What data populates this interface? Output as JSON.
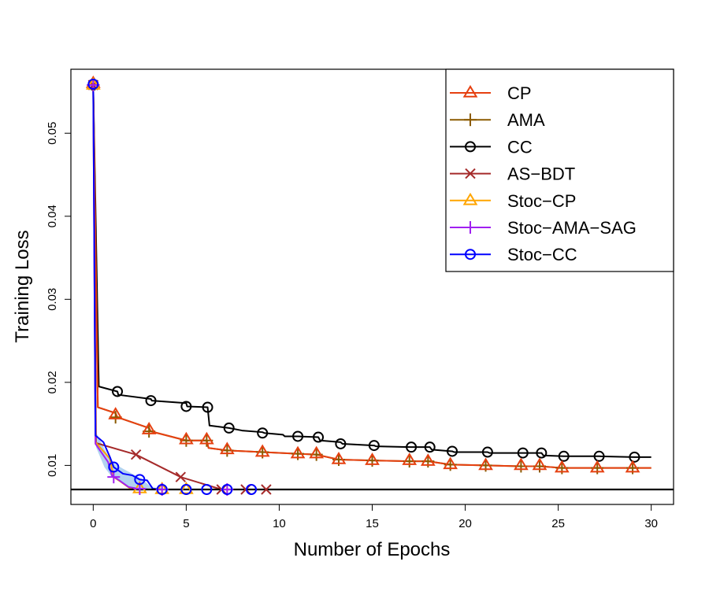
{
  "chart_data": {
    "type": "line",
    "title": "",
    "xlabel": "Number of Epochs",
    "ylabel": "Training Loss",
    "xlim": [
      -1.2,
      31.2
    ],
    "ylim": [
      0.0053,
      0.0577
    ],
    "xticks": [
      0,
      5,
      10,
      15,
      20,
      25,
      30
    ],
    "yticks": [
      0.01,
      0.02,
      0.03,
      0.04,
      0.05
    ],
    "xtick_labels": [
      "0",
      "5",
      "10",
      "15",
      "20",
      "25",
      "30"
    ],
    "ytick_labels": [
      "0.01",
      "0.02",
      "0.03",
      "0.04",
      "0.05"
    ],
    "reference_line_y": 0.0071,
    "legend_position": "top-right",
    "grid": false,
    "series": [
      {
        "name": "CC",
        "color": "#000000",
        "marker": "circle",
        "x": [
          0,
          0.3,
          1.3,
          1.35,
          3.1,
          3.15,
          5.0,
          5.05,
          6.15,
          6.25,
          7.3,
          8.0,
          9.1,
          9.2,
          10.2,
          10.3,
          11.0,
          12.1,
          12.2,
          13.3,
          13.4,
          15.1,
          15.2,
          17.1,
          18.1,
          18.2,
          19.3,
          19.4,
          21.2,
          21.3,
          23.1,
          24.1,
          24.2,
          25.3,
          27.2,
          29.1,
          30.0
        ],
        "y": [
          0.0558,
          0.0195,
          0.0189,
          0.0185,
          0.018,
          0.0178,
          0.0175,
          0.0171,
          0.017,
          0.0148,
          0.0145,
          0.0142,
          0.014,
          0.0139,
          0.0137,
          0.0135,
          0.0135,
          0.0134,
          0.013,
          0.0128,
          0.0126,
          0.0124,
          0.0123,
          0.0122,
          0.0122,
          0.0119,
          0.0117,
          0.0116,
          0.0116,
          0.0115,
          0.0115,
          0.0115,
          0.0112,
          0.0111,
          0.0111,
          0.011,
          0.011
        ],
        "marker_x": [
          0,
          1.3,
          3.1,
          5.0,
          6.15,
          7.3,
          9.1,
          11.0,
          12.1,
          13.3,
          15.1,
          17.1,
          18.1,
          19.3,
          21.2,
          23.1,
          24.1,
          25.3,
          27.2,
          29.1
        ],
        "marker_y": [
          0.0558,
          0.0189,
          0.0178,
          0.0171,
          0.017,
          0.0145,
          0.0139,
          0.0135,
          0.0134,
          0.0126,
          0.0124,
          0.0122,
          0.0122,
          0.0117,
          0.0116,
          0.0115,
          0.0115,
          0.0111,
          0.0111,
          0.011
        ]
      },
      {
        "name": "AMA",
        "color": "#8b5a00",
        "marker": "plus",
        "x": [
          0,
          0.25,
          1.2,
          1.3,
          3.0,
          3.1,
          5.0,
          6.1,
          6.2,
          7.2,
          9.1,
          11.0,
          12.0,
          13.2,
          15.0,
          17.0,
          18.0,
          19.2,
          21.1,
          23.0,
          24.0,
          25.2,
          27.1,
          29.0,
          30.0
        ],
        "y": [
          0.0558,
          0.017,
          0.0163,
          0.0158,
          0.0145,
          0.0141,
          0.013,
          0.013,
          0.0121,
          0.0118,
          0.0116,
          0.0114,
          0.0113,
          0.0107,
          0.0106,
          0.0105,
          0.0105,
          0.0101,
          0.01,
          0.0099,
          0.0099,
          0.0097,
          0.0097,
          0.0097,
          0.0097
        ],
        "marker_x": [
          0,
          1.2,
          3.0,
          5.0,
          6.1,
          7.2,
          9.1,
          11.0,
          12.0,
          13.2,
          15.0,
          17.0,
          18.0,
          19.2,
          21.1,
          23.0,
          24.0,
          25.2,
          27.1,
          29.0
        ],
        "marker_y": [
          0.0558,
          0.0158,
          0.0141,
          0.013,
          0.013,
          0.0118,
          0.0116,
          0.0114,
          0.0113,
          0.0107,
          0.0106,
          0.0105,
          0.0105,
          0.0101,
          0.01,
          0.0099,
          0.0099,
          0.0097,
          0.0097,
          0.0097
        ]
      },
      {
        "name": "CP",
        "color": "#e64010",
        "marker": "triangle",
        "x": [
          0,
          0.25,
          1.2,
          1.3,
          3.0,
          3.1,
          5.0,
          6.1,
          6.2,
          7.2,
          9.1,
          11.0,
          12.0,
          13.2,
          15.0,
          17.0,
          18.0,
          19.2,
          21.1,
          23.0,
          24.0,
          25.2,
          27.1,
          29.0,
          30.0
        ],
        "y": [
          0.0558,
          0.017,
          0.0163,
          0.0158,
          0.0145,
          0.0141,
          0.013,
          0.013,
          0.0121,
          0.0118,
          0.0116,
          0.0114,
          0.0113,
          0.0107,
          0.0106,
          0.0105,
          0.0105,
          0.0101,
          0.01,
          0.0099,
          0.0099,
          0.0097,
          0.0097,
          0.0097,
          0.0097
        ],
        "marker_x": [
          0,
          1.2,
          3.0,
          5.0,
          6.1,
          7.2,
          9.1,
          11.0,
          12.0,
          13.2,
          15.0,
          17.0,
          18.0,
          19.2,
          21.1,
          23.0,
          24.0,
          25.2,
          27.1,
          29.0
        ],
        "marker_y": [
          0.056,
          0.0161,
          0.0143,
          0.0131,
          0.0131,
          0.0119,
          0.0116,
          0.0114,
          0.0114,
          0.0107,
          0.0106,
          0.0106,
          0.0105,
          0.0101,
          0.01,
          0.01,
          0.01,
          0.0097,
          0.0097,
          0.0097
        ]
      },
      {
        "name": "AS−BDT",
        "color": "#a52a2a",
        "marker": "cross",
        "x": [
          0,
          0.15,
          2.3,
          4.7,
          6.9,
          7.3,
          8.2,
          9.3
        ],
        "y": [
          0.0558,
          0.0127,
          0.0113,
          0.0086,
          0.0071,
          0.0071,
          0.0071,
          0.0071
        ],
        "marker_x": [
          0,
          2.3,
          4.7,
          6.9,
          8.2,
          9.3
        ],
        "marker_y": [
          0.0558,
          0.0113,
          0.0086,
          0.0071,
          0.0071,
          0.0071
        ]
      },
      {
        "name": "Stoc−CP",
        "color": "#ffa500",
        "marker": "triangle",
        "x": [
          0,
          0.12,
          0.9,
          1.1,
          1.5,
          2.0,
          2.5,
          3.0,
          4.0,
          5.0,
          7.0
        ],
        "y": [
          0.0558,
          0.0128,
          0.0108,
          0.0086,
          0.008,
          0.0072,
          0.0071,
          0.0071,
          0.0071,
          0.0071,
          0.0071
        ],
        "marker_x": [
          0,
          2.5,
          3.7,
          5.0
        ],
        "marker_y": [
          0.0558,
          0.0072,
          0.0071,
          0.0071
        ]
      },
      {
        "name": "Stoc−AMA−SAG",
        "color": "#a020f0",
        "marker": "plus",
        "x": [
          0,
          0.12,
          0.8,
          1.0,
          1.4,
          1.9,
          2.4,
          3.0,
          3.7,
          5.0,
          7.0
        ],
        "y": [
          0.0558,
          0.0126,
          0.0104,
          0.0088,
          0.0082,
          0.0074,
          0.0072,
          0.0071,
          0.0071,
          0.0071,
          0.0071
        ],
        "marker_x": [
          0,
          1.1,
          2.5,
          3.7,
          7.2
        ],
        "marker_y": [
          0.0558,
          0.0086,
          0.0072,
          0.0071,
          0.0071
        ]
      },
      {
        "name": "Stoc−CC",
        "color": "#0000ff",
        "marker": "circle",
        "band_color": "#9fc8ec",
        "band_upper": [
          0.0558,
          0.014,
          0.012,
          0.0104,
          0.0096,
          0.009,
          0.0084,
          0.0074,
          0.0072,
          0.0072
        ],
        "band_lower": [
          0.0558,
          0.0122,
          0.0098,
          0.0086,
          0.0078,
          0.0073,
          0.0071,
          0.007,
          0.007,
          0.007
        ],
        "band_x": [
          0,
          0.15,
          0.6,
          1.0,
          1.6,
          2.1,
          2.6,
          3.1,
          3.7,
          7.2
        ],
        "x": [
          0,
          0.12,
          0.55,
          0.9,
          1.1,
          1.6,
          2.1,
          2.5,
          2.9,
          3.2,
          3.7,
          5.0,
          6.1,
          7.2,
          8.5
        ],
        "y": [
          0.0558,
          0.0136,
          0.0128,
          0.011,
          0.0098,
          0.009,
          0.0088,
          0.0083,
          0.0082,
          0.0072,
          0.0071,
          0.0071,
          0.0071,
          0.0071,
          0.0071
        ],
        "marker_x": [
          0,
          1.1,
          2.5,
          3.7,
          5.0,
          6.1,
          7.2,
          8.5
        ],
        "marker_y": [
          0.0559,
          0.0098,
          0.0083,
          0.0071,
          0.0071,
          0.0071,
          0.0071,
          0.0071
        ]
      }
    ],
    "legend_order": [
      "CP",
      "AMA",
      "CC",
      "AS−BDT",
      "Stoc−CP",
      "Stoc−AMA−SAG",
      "Stoc−CC"
    ]
  }
}
